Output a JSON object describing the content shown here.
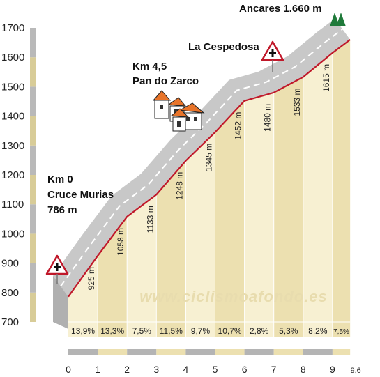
{
  "chart_data": {
    "type": "area",
    "title": "",
    "xlabel": "",
    "ylabel": "",
    "ylim": [
      700,
      1700
    ],
    "xlim": [
      0,
      9.6
    ],
    "yticks": [
      "700",
      "800",
      "900",
      "1000",
      "1100",
      "1200",
      "1300",
      "1400",
      "1500",
      "1600",
      "1700"
    ],
    "xticks": [
      "0",
      "1",
      "2",
      "3",
      "4",
      "5",
      "6",
      "7",
      "8",
      "9",
      "9,6"
    ],
    "x": [
      0,
      1,
      2,
      3,
      4,
      5,
      6,
      7,
      8,
      9,
      9.6
    ],
    "y": [
      786,
      925,
      1058,
      1133,
      1248,
      1345,
      1452,
      1480,
      1533,
      1615,
      1660
    ],
    "altitude_labels": [
      "925 m",
      "1058 m",
      "1133 m",
      "1248 m",
      "1345 m",
      "1452 m",
      "1480 m",
      "1533 m",
      "1615 m"
    ],
    "gradients": [
      "13,9%",
      "13,3%",
      "7,5%",
      "11,5%",
      "9,7%",
      "10,7%",
      "2,8%",
      "5,3%",
      "8,2%",
      "7,5%"
    ],
    "annotations": {
      "start_line1": "Km 0",
      "start_line2": "Cruce Murias",
      "start_line3": "786 m",
      "mid_line1": "Km 4,5",
      "mid_line2": "Pan do Zarco",
      "cespedosa": "La Cespedosa",
      "summit": "Ancares 1.660 m"
    },
    "watermark": "www.ciclismoafondo.es",
    "colors": {
      "profile_line": "#c0182a",
      "band_light": "#f7f0d2",
      "band_dark": "#ece0b0",
      "road": "#c8c8c8",
      "sign_border": "#c0182a",
      "tree": "#1f7a3a",
      "house_roof": "#e8742a"
    }
  }
}
